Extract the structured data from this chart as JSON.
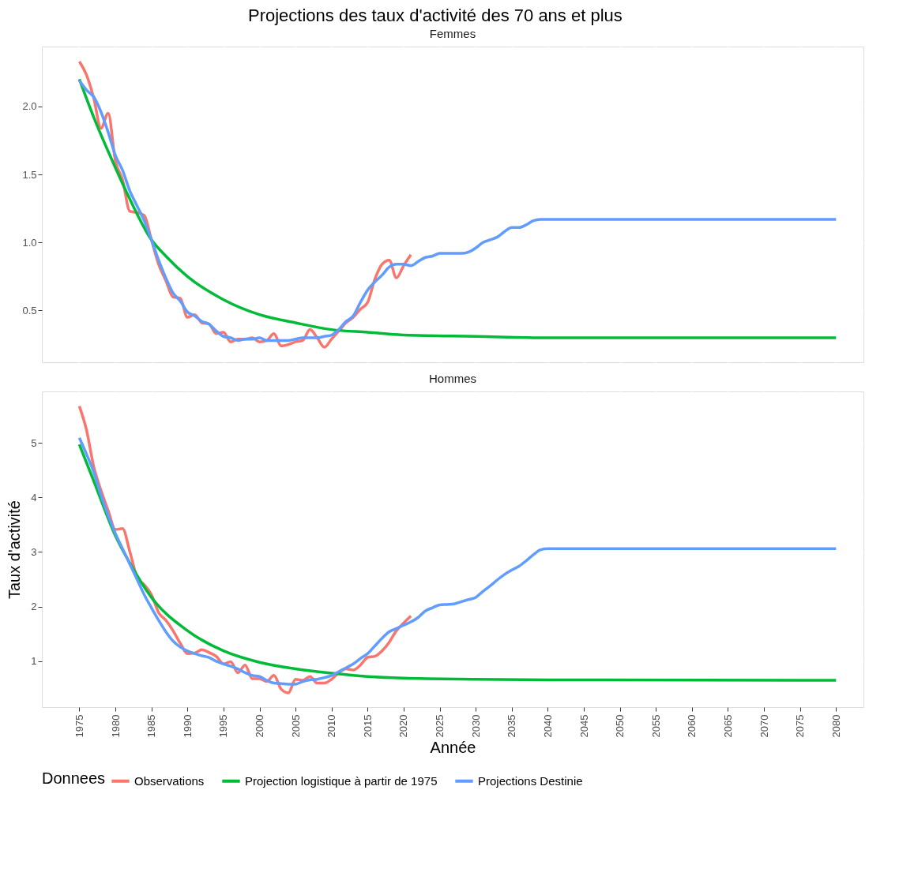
{
  "chart_data": [
    {
      "type": "line",
      "title": "Projections des taux d'activité des 70 ans et plus",
      "subtitle": "Femmes",
      "xlim": [
        1969.8,
        2083.8
      ],
      "xticks": [
        1975,
        1980,
        1985,
        1990,
        1995,
        2000,
        2005,
        2010,
        2015,
        2020,
        2025,
        2030,
        2035,
        2040,
        2045,
        2050,
        2055,
        2060,
        2065,
        2070,
        2075,
        2080
      ],
      "ylim": [
        0.12,
        2.44
      ],
      "yticks": [
        {
          "value": 0.5,
          "label": "0.5"
        },
        {
          "value": 1,
          "label": "1.0"
        },
        {
          "value": 1.5,
          "label": "1.5"
        },
        {
          "value": 2,
          "label": "2.0"
        }
      ],
      "grid": true,
      "tick_labels": "y",
      "line_style": "solid",
      "marker": "none",
      "series": [
        {
          "color": "#f8766d",
          "x": [
            1975,
            1976,
            1977,
            1978,
            1979,
            1980,
            1981,
            1982,
            1983,
            1984,
            1985,
            1986,
            1987,
            1988,
            1989,
            1990,
            1991,
            1992,
            1993,
            1994,
            1995,
            1996,
            1997,
            1998,
            1999,
            2000,
            2001,
            2002,
            2003,
            2004,
            2005,
            2006,
            2007,
            2008,
            2009,
            2010,
            2011,
            2012,
            2013,
            2014,
            2015,
            2016,
            2017,
            2018,
            2019,
            2020,
            2021
          ],
          "values": [
            2.33,
            2.23,
            2.06,
            1.84,
            1.95,
            1.6,
            1.46,
            1.23,
            1.22,
            1.2,
            1.02,
            0.84,
            0.72,
            0.6,
            0.59,
            0.45,
            0.47,
            0.41,
            0.4,
            0.33,
            0.34,
            0.27,
            0.29,
            0.29,
            0.3,
            0.27,
            0.28,
            0.33,
            0.24,
            0.25,
            0.27,
            0.28,
            0.36,
            0.3,
            0.23,
            0.29,
            0.35,
            0.41,
            0.45,
            0.51,
            0.56,
            0.73,
            0.84,
            0.87,
            0.74,
            0.83,
            0.91
          ]
        },
        {
          "color": "#00ba38",
          "x": [
            1975,
            1977,
            1980,
            1982,
            1985,
            1987,
            1990,
            1995,
            2000,
            2005,
            2010,
            2015,
            2020,
            2030,
            2040,
            2080
          ],
          "values": [
            2.2,
            1.92,
            1.55,
            1.32,
            1.02,
            0.9,
            0.75,
            0.58,
            0.47,
            0.41,
            0.36,
            0.34,
            0.32,
            0.31,
            0.3,
            0.3
          ]
        },
        {
          "color": "#619cff",
          "x": [
            1975,
            1976,
            1977,
            1978,
            1979,
            1980,
            1981,
            1982,
            1983,
            1984,
            1985,
            1986,
            1987,
            1988,
            1989,
            1990,
            1991,
            1992,
            1993,
            1994,
            1995,
            1996,
            1997,
            1998,
            1999,
            2000,
            2001,
            2002,
            2003,
            2004,
            2005,
            2006,
            2007,
            2008,
            2009,
            2010,
            2011,
            2012,
            2013,
            2014,
            2015,
            2016,
            2017,
            2018,
            2019,
            2020,
            2021,
            2022,
            2023,
            2024,
            2025,
            2026,
            2027,
            2028,
            2029,
            2030,
            2031,
            2032,
            2033,
            2034,
            2035,
            2036,
            2037,
            2038,
            2039,
            2040,
            2080
          ],
          "values": [
            2.19,
            2.12,
            2.07,
            1.96,
            1.81,
            1.64,
            1.53,
            1.38,
            1.27,
            1.16,
            1.02,
            0.87,
            0.74,
            0.63,
            0.57,
            0.49,
            0.46,
            0.42,
            0.4,
            0.35,
            0.31,
            0.3,
            0.28,
            0.29,
            0.29,
            0.3,
            0.28,
            0.28,
            0.28,
            0.28,
            0.29,
            0.3,
            0.3,
            0.3,
            0.31,
            0.32,
            0.36,
            0.42,
            0.46,
            0.56,
            0.65,
            0.71,
            0.76,
            0.82,
            0.84,
            0.84,
            0.83,
            0.86,
            0.89,
            0.9,
            0.92,
            0.92,
            0.92,
            0.92,
            0.93,
            0.96,
            1.0,
            1.02,
            1.04,
            1.08,
            1.11,
            1.11,
            1.13,
            1.16,
            1.17,
            1.17,
            1.17
          ]
        }
      ]
    },
    {
      "type": "line",
      "subtitle": "Hommes",
      "xlabel": "Année",
      "ylabel": "Taux d'activité",
      "legend_title": "Donnees",
      "legend": "bottom",
      "xlim": [
        1969.8,
        2083.8
      ],
      "xticks": [
        1975,
        1980,
        1985,
        1990,
        1995,
        2000,
        2005,
        2010,
        2015,
        2020,
        2025,
        2030,
        2035,
        2040,
        2045,
        2050,
        2055,
        2060,
        2065,
        2070,
        2075,
        2080
      ],
      "ylim": [
        0.16,
        5.94
      ],
      "yticks": [
        1,
        2,
        3,
        4,
        5
      ],
      "grid": true,
      "line_style": "solid",
      "marker": "none",
      "series": [
        {
          "name": "Observations",
          "color": "#f8766d",
          "x": [
            1975,
            1976,
            1977,
            1978,
            1979,
            1980,
            1981,
            1982,
            1983,
            1984,
            1985,
            1986,
            1987,
            1988,
            1989,
            1990,
            1991,
            1992,
            1993,
            1994,
            1995,
            1996,
            1997,
            1998,
            1999,
            2000,
            2001,
            2002,
            2003,
            2004,
            2005,
            2006,
            2007,
            2008,
            2009,
            2010,
            2011,
            2012,
            2013,
            2014,
            2015,
            2016,
            2017,
            2018,
            2019,
            2020,
            2021
          ],
          "values": [
            5.67,
            5.23,
            4.56,
            4.13,
            3.76,
            3.41,
            3.43,
            3.01,
            2.54,
            2.4,
            2.22,
            1.89,
            1.75,
            1.56,
            1.33,
            1.14,
            1.15,
            1.21,
            1.16,
            1.09,
            0.95,
            0.99,
            0.79,
            0.93,
            0.68,
            0.68,
            0.63,
            0.74,
            0.49,
            0.42,
            0.67,
            0.65,
            0.72,
            0.6,
            0.6,
            0.67,
            0.79,
            0.86,
            0.84,
            0.93,
            1.07,
            1.09,
            1.19,
            1.35,
            1.56,
            1.7,
            1.83
          ]
        },
        {
          "name": "Projection logistique à partir de 1975",
          "color": "#00ba38",
          "x": [
            1975,
            1977,
            1980,
            1982,
            1985,
            1990,
            1995,
            2000,
            2005,
            2010,
            2015,
            2020,
            2030,
            2040,
            2080
          ],
          "values": [
            4.97,
            4.3,
            3.3,
            2.8,
            2.17,
            1.56,
            1.19,
            0.98,
            0.86,
            0.78,
            0.72,
            0.69,
            0.67,
            0.66,
            0.65
          ]
        },
        {
          "name": "Projections Destinie",
          "color": "#619cff",
          "x": [
            1975,
            1976,
            1977,
            1978,
            1979,
            1980,
            1981,
            1982,
            1983,
            1984,
            1985,
            1986,
            1987,
            1988,
            1989,
            1990,
            1991,
            1992,
            1993,
            1994,
            1995,
            1996,
            1997,
            1998,
            1999,
            2000,
            2001,
            2002,
            2003,
            2004,
            2005,
            2006,
            2007,
            2008,
            2009,
            2010,
            2011,
            2012,
            2013,
            2014,
            2015,
            2016,
            2017,
            2018,
            2019,
            2020,
            2021,
            2022,
            2023,
            2024,
            2025,
            2026,
            2027,
            2028,
            2029,
            2030,
            2031,
            2032,
            2033,
            2034,
            2035,
            2036,
            2037,
            2038,
            2039,
            2040,
            2080
          ],
          "values": [
            5.09,
            4.79,
            4.46,
            4.04,
            3.67,
            3.34,
            3.06,
            2.78,
            2.5,
            2.22,
            1.98,
            1.75,
            1.54,
            1.37,
            1.26,
            1.19,
            1.14,
            1.1,
            1.07,
            1.0,
            0.95,
            0.91,
            0.86,
            0.79,
            0.74,
            0.72,
            0.65,
            0.6,
            0.59,
            0.58,
            0.58,
            0.63,
            0.66,
            0.67,
            0.7,
            0.74,
            0.81,
            0.88,
            0.95,
            1.05,
            1.14,
            1.28,
            1.42,
            1.54,
            1.6,
            1.66,
            1.72,
            1.8,
            1.92,
            1.98,
            2.03,
            2.04,
            2.05,
            2.09,
            2.13,
            2.17,
            2.28,
            2.38,
            2.49,
            2.59,
            2.67,
            2.74,
            2.84,
            2.95,
            3.04,
            3.06,
            3.06
          ]
        }
      ]
    }
  ]
}
